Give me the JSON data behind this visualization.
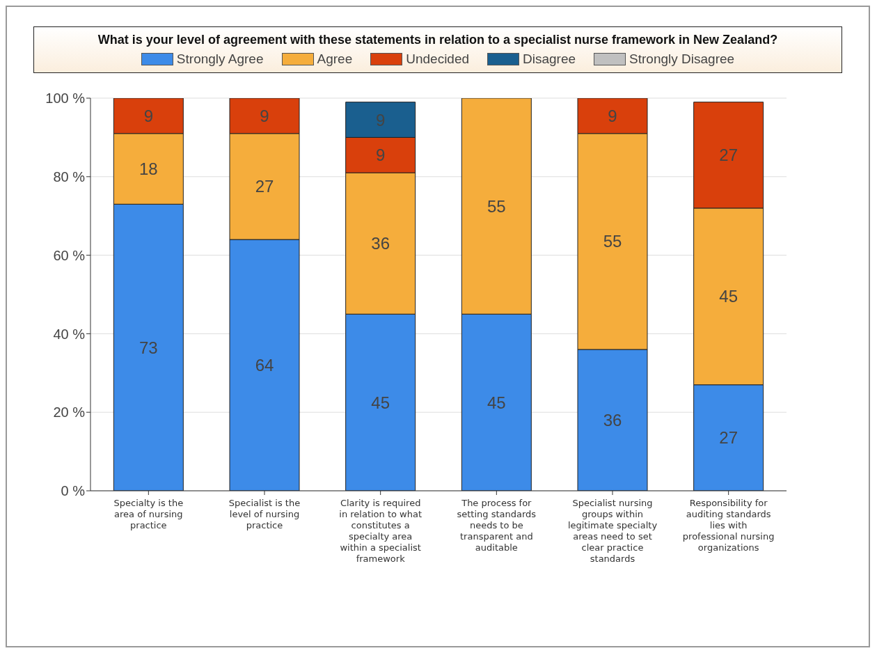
{
  "chart_data": {
    "type": "bar",
    "title": "What is your level of agreement with these statements in relation to a specialist nurse framework in New Zealand?",
    "categories": [
      "Specialty is the area of nursing practice",
      "Specialist is the level of nursing practice",
      "Clarity is required in relation to what constitutes a specialty area within a specialist framework",
      "The process for setting standards needs to be transparent and auditable",
      "Specialist nursing groups within legitimate specialty areas need to set clear practice standards",
      "Responsibility for auditing standards lies with professional nursing organizations"
    ],
    "series": [
      {
        "name": "Strongly Agree",
        "color": "#3d8be8",
        "values": [
          73,
          64,
          45,
          45,
          36,
          27
        ]
      },
      {
        "name": "Agree",
        "color": "#f5ad3c",
        "values": [
          18,
          27,
          36,
          55,
          55,
          45
        ]
      },
      {
        "name": "Undecided",
        "color": "#d9400c",
        "values": [
          9,
          9,
          9,
          null,
          9,
          27
        ]
      },
      {
        "name": "Disagree",
        "color": "#1a5f8f",
        "values": [
          null,
          null,
          9,
          null,
          null,
          null
        ]
      },
      {
        "name": "Strongly Disagree",
        "color": "#c0c0c0",
        "values": [
          null,
          null,
          null,
          null,
          null,
          null
        ]
      }
    ],
    "stacked": true,
    "data_labels": true,
    "ylim": [
      0,
      100
    ],
    "yticks": [
      {
        "value": 0,
        "label": "0 %"
      },
      {
        "value": 20,
        "label": "20 %"
      },
      {
        "value": 40,
        "label": "40 %"
      },
      {
        "value": 60,
        "label": "60 %"
      },
      {
        "value": 80,
        "label": "80 %"
      },
      {
        "value": 100,
        "label": "100 %"
      }
    ],
    "grid": "y",
    "legend": "top"
  }
}
